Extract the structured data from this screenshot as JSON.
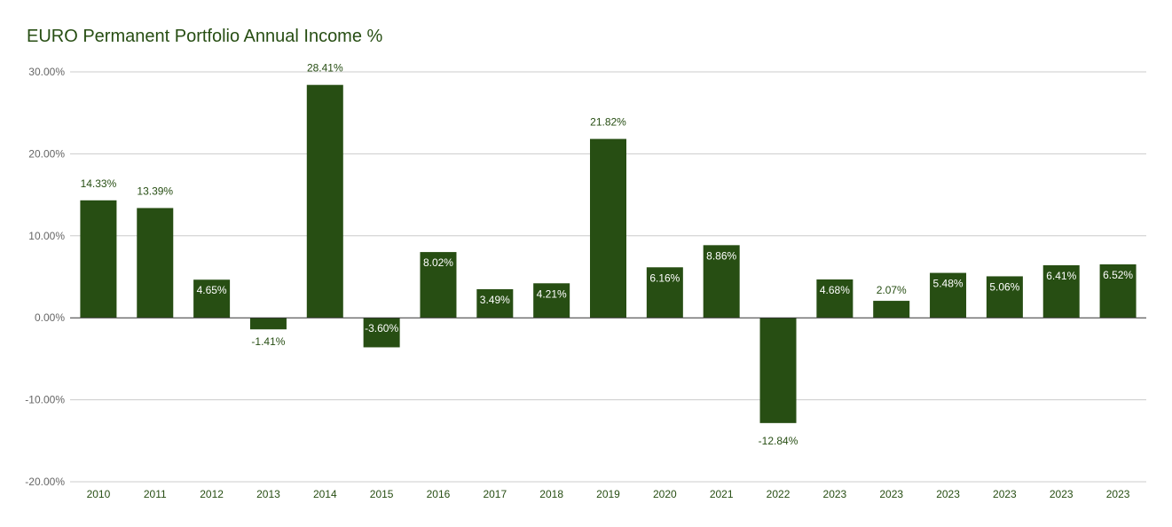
{
  "chart_data": {
    "type": "bar",
    "title": "EURO Permanent Portfolio Annual Income %",
    "xlabel": "",
    "ylabel": "",
    "categories": [
      "2010",
      "2011",
      "2012",
      "2013",
      "2014",
      "2015",
      "2016",
      "2017",
      "2018",
      "2019",
      "2020",
      "2021",
      "2022",
      "2023",
      "2023",
      "2023",
      "2023",
      "2023",
      "2023"
    ],
    "values": [
      14.33,
      13.39,
      4.65,
      -1.41,
      28.41,
      -3.6,
      8.02,
      3.49,
      4.21,
      21.82,
      6.16,
      8.86,
      -12.84,
      4.68,
      2.07,
      5.48,
      5.06,
      6.41,
      6.52
    ],
    "data_labels": [
      "14.33%",
      "13.39%",
      "4.65%",
      "-1.41%",
      "28.41%",
      "-3.60%",
      "8.02%",
      "3.49%",
      "4.21%",
      "21.82%",
      "6.16%",
      "8.86%",
      "-12.84%",
      "4.68%",
      "2.07%",
      "5.48%",
      "5.06%",
      "6.41%",
      "6.52%"
    ],
    "ylim": [
      -20,
      30
    ],
    "yticks": [
      30,
      20,
      10,
      0,
      -10,
      -20
    ],
    "ytick_labels": [
      "30.00%",
      "20.00%",
      "10.00%",
      "0.00%",
      "-10.00%",
      "-20.00%"
    ],
    "grid": true,
    "legend": "none",
    "colors": {
      "bar": "#274e13",
      "title": "#274e13",
      "grid": "#cccccc",
      "axis": "#333333",
      "label_inside": "#ffffff",
      "label_outside": "#274e13",
      "ytick": "#666666"
    }
  }
}
